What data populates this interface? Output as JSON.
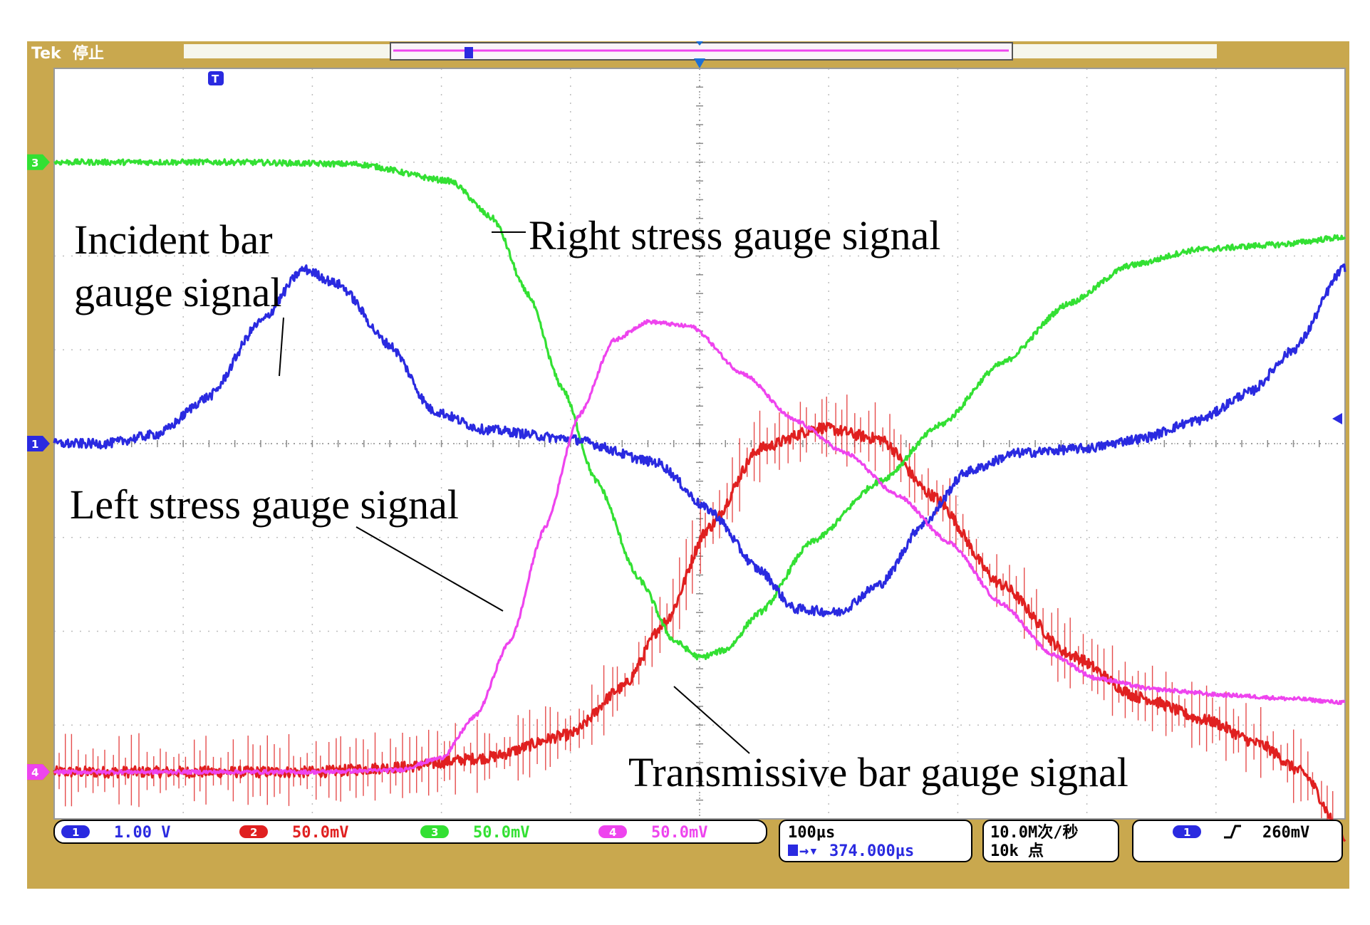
{
  "chart_data": {
    "type": "line",
    "device_label": "Tek",
    "status": "停止",
    "x": {
      "divisions": 10,
      "time_per_div": "100µs",
      "trigger_position": "374.000µs"
    },
    "y": {
      "divisions": 8,
      "range": [
        -4,
        4
      ]
    },
    "grid": true,
    "series": [
      {
        "name": "Incident bar gauge signal",
        "channel": "1",
        "scale": "1.00 V",
        "color": "#2a2ae0",
        "noise": 0.05,
        "points": [
          [
            0,
            0
          ],
          [
            0.6,
            0
          ],
          [
            1.2,
            0.1
          ],
          [
            1.8,
            0.5
          ],
          [
            2.4,
            1.3
          ],
          [
            2.9,
            1.86
          ],
          [
            3.3,
            1.7
          ],
          [
            3.9,
            1.05
          ],
          [
            4.4,
            0.35
          ],
          [
            5.0,
            0.15
          ],
          [
            6.0,
            0.05
          ],
          [
            7.0,
            -0.2
          ],
          [
            7.6,
            -0.7
          ],
          [
            8.2,
            -1.35
          ],
          [
            8.6,
            -1.76
          ],
          [
            9.1,
            -1.8
          ],
          [
            9.6,
            -1.5
          ],
          [
            10.1,
            -0.85
          ],
          [
            10.6,
            -0.3
          ],
          [
            11.2,
            -0.1
          ],
          [
            12.0,
            -0.05
          ],
          [
            12.6,
            0.05
          ],
          [
            13.3,
            0.25
          ],
          [
            13.9,
            0.55
          ],
          [
            14.4,
            1.0
          ],
          [
            15.0,
            1.88
          ]
        ]
      },
      {
        "name": "Transmissive bar gauge signal",
        "channel": "2",
        "scale": "50.0mV",
        "color": "#e02020",
        "noise": 0.06,
        "spikes": true,
        "points": [
          [
            0,
            -3.5
          ],
          [
            3.0,
            -3.5
          ],
          [
            4.0,
            -3.45
          ],
          [
            5.0,
            -3.35
          ],
          [
            6.0,
            -3.1
          ],
          [
            6.6,
            -2.6
          ],
          [
            7.1,
            -1.9
          ],
          [
            7.6,
            -0.9
          ],
          [
            8.2,
            -0.05
          ],
          [
            8.9,
            0.17
          ],
          [
            9.6,
            0.05
          ],
          [
            10.2,
            -0.55
          ],
          [
            11.0,
            -1.5
          ],
          [
            11.8,
            -2.25
          ],
          [
            12.6,
            -2.7
          ],
          [
            13.4,
            -2.95
          ],
          [
            14.0,
            -3.2
          ],
          [
            14.5,
            -3.5
          ],
          [
            15.0,
            -4.2
          ]
        ]
      },
      {
        "name": "Right stress gauge signal",
        "channel": "3",
        "scale": "50.0mV",
        "color": "#33e033",
        "noise": 0.03,
        "points": [
          [
            0,
            3.0
          ],
          [
            2.0,
            3.0
          ],
          [
            3.5,
            2.98
          ],
          [
            4.6,
            2.8
          ],
          [
            5.1,
            2.4
          ],
          [
            5.5,
            1.6
          ],
          [
            5.9,
            0.6
          ],
          [
            6.3,
            -0.4
          ],
          [
            6.8,
            -1.45
          ],
          [
            7.2,
            -2.1
          ],
          [
            7.5,
            -2.28
          ],
          [
            7.8,
            -2.2
          ],
          [
            8.2,
            -1.8
          ],
          [
            8.8,
            -1.05
          ],
          [
            9.6,
            -0.4
          ],
          [
            10.3,
            0.2
          ],
          [
            11.0,
            0.85
          ],
          [
            11.8,
            1.5
          ],
          [
            12.5,
            1.9
          ],
          [
            13.3,
            2.07
          ],
          [
            14.2,
            2.12
          ],
          [
            15.0,
            2.2
          ]
        ]
      },
      {
        "name": "Left stress gauge signal",
        "channel": "4",
        "scale": "50.0mV",
        "color": "#ee44ee",
        "noise": 0.02,
        "points": [
          [
            0,
            -3.5
          ],
          [
            3.0,
            -3.5
          ],
          [
            4.0,
            -3.48
          ],
          [
            4.5,
            -3.35
          ],
          [
            4.9,
            -2.9
          ],
          [
            5.3,
            -2.1
          ],
          [
            5.7,
            -0.9
          ],
          [
            6.1,
            0.3
          ],
          [
            6.5,
            1.1
          ],
          [
            6.9,
            1.3
          ],
          [
            7.4,
            1.25
          ],
          [
            8.0,
            0.75
          ],
          [
            8.6,
            0.25
          ],
          [
            9.2,
            -0.1
          ],
          [
            9.8,
            -0.55
          ],
          [
            10.4,
            -1.05
          ],
          [
            11.0,
            -1.7
          ],
          [
            11.6,
            -2.25
          ],
          [
            12.1,
            -2.5
          ],
          [
            12.8,
            -2.62
          ],
          [
            13.6,
            -2.68
          ],
          [
            14.4,
            -2.72
          ],
          [
            15.0,
            -2.76
          ]
        ]
      }
    ],
    "annotations": [
      {
        "text_lines": [
          "Incident bar",
          "gauge signal"
        ]
      },
      {
        "text_lines": [
          "Right stress gauge signal"
        ]
      },
      {
        "text_lines": [
          "Left stress gauge signal"
        ]
      },
      {
        "text_lines": [
          "Transmissive bar gauge signal"
        ]
      }
    ],
    "readout": {
      "ch1": "1.00 V",
      "ch2": "50.0mV",
      "ch3": "50.0mV",
      "ch4": "50.0mV",
      "timebase": "100µs",
      "trigger_pos": "374.000µs",
      "sample_rate": "10.0M次/秒",
      "record_length": "10k 点",
      "trigger_channel": "1",
      "trigger_level": "260mV"
    }
  }
}
